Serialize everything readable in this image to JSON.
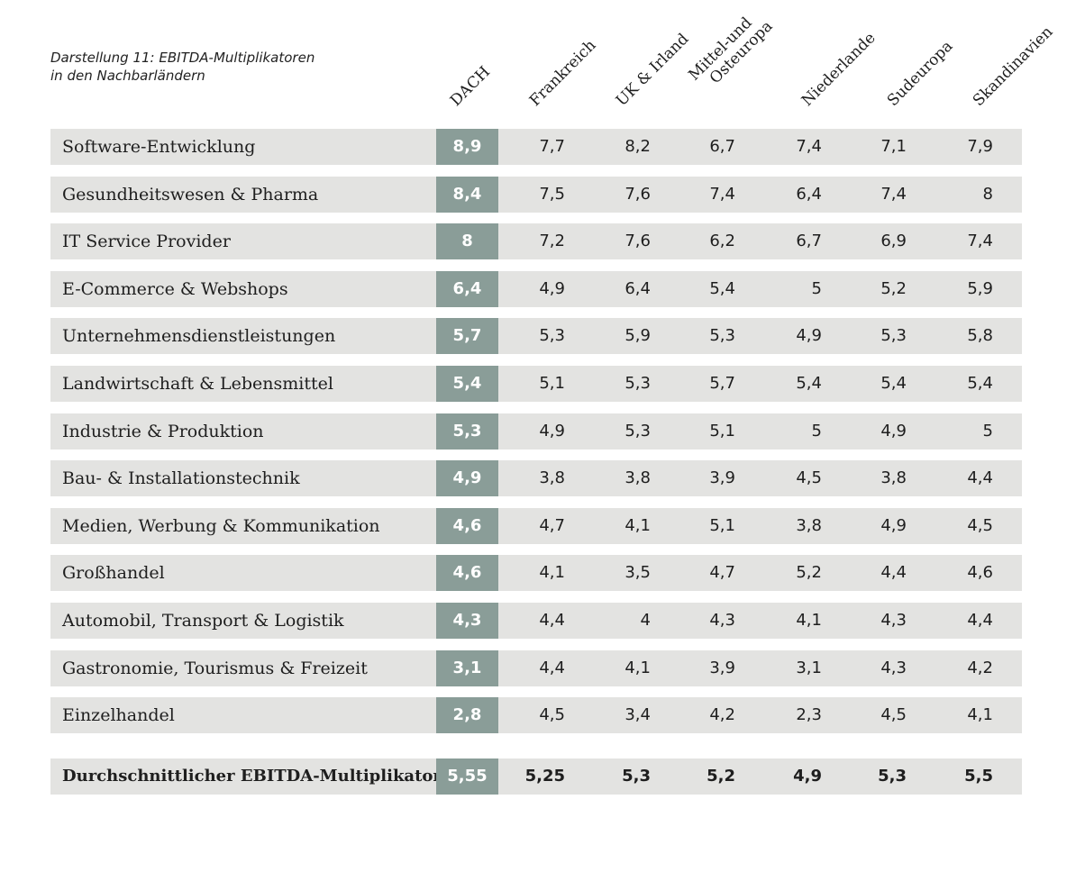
{
  "chart_data": {
    "type": "table",
    "title": "Darstellung 11: EBITDA-Multiplikatoren",
    "subtitle": "in den Nachbarländern",
    "columns": [
      {
        "label": "DACH"
      },
      {
        "label": "Frankreich"
      },
      {
        "label": "UK & Irland"
      },
      {
        "label": "Mittel-und",
        "label2": "Osteuropa"
      },
      {
        "label": "Niederlande"
      },
      {
        "label": "Sudeuropa"
      },
      {
        "label": "Skandinavien"
      }
    ],
    "rows": [
      {
        "label": "Software-Entwicklung",
        "values": [
          "8,9",
          "7,7",
          "8,2",
          "6,7",
          "7,4",
          "7,1",
          "7,9"
        ]
      },
      {
        "label": "Gesundheitswesen & Pharma",
        "values": [
          "8,4",
          "7,5",
          "7,6",
          "7,4",
          "6,4",
          "7,4",
          "8"
        ]
      },
      {
        "label": "IT Service Provider",
        "values": [
          "8",
          "7,2",
          "7,6",
          "6,2",
          "6,7",
          "6,9",
          "7,4"
        ]
      },
      {
        "label": "E-Commerce & Webshops",
        "values": [
          "6,4",
          "4,9",
          "6,4",
          "5,4",
          "5",
          "5,2",
          "5,9"
        ]
      },
      {
        "label": "Unternehmensdienstleistungen",
        "values": [
          "5,7",
          "5,3",
          "5,9",
          "5,3",
          "4,9",
          "5,3",
          "5,8"
        ]
      },
      {
        "label": "Landwirtschaft & Lebensmittel",
        "values": [
          "5,4",
          "5,1",
          "5,3",
          "5,7",
          "5,4",
          "5,4",
          "5,4"
        ]
      },
      {
        "label": "Industrie & Produktion",
        "values": [
          "5,3",
          "4,9",
          "5,3",
          "5,1",
          "5",
          "4,9",
          "5"
        ]
      },
      {
        "label": "Bau- & Installationstechnik",
        "values": [
          "4,9",
          "3,8",
          "3,8",
          "3,9",
          "4,5",
          "3,8",
          "4,4"
        ]
      },
      {
        "label": "Medien, Werbung & Kommunikation",
        "values": [
          "4,6",
          "4,7",
          "4,1",
          "5,1",
          "3,8",
          "4,9",
          "4,5"
        ]
      },
      {
        "label": "Großhandel",
        "values": [
          "4,6",
          "4,1",
          "3,5",
          "4,7",
          "5,2",
          "4,4",
          "4,6"
        ]
      },
      {
        "label": "Automobil, Transport & Logistik",
        "values": [
          "4,3",
          "4,4",
          "4",
          "4,3",
          "4,1",
          "4,3",
          "4,4"
        ]
      },
      {
        "label": "Gastronomie, Tourismus & Freizeit",
        "values": [
          "3,1",
          "4,4",
          "4,1",
          "3,9",
          "3,1",
          "4,3",
          "4,2"
        ]
      },
      {
        "label": "Einzelhandel",
        "values": [
          "2,8",
          "4,5",
          "3,4",
          "4,2",
          "2,3",
          "4,5",
          "4,1"
        ]
      }
    ],
    "total": {
      "label": "Durchschnittlicher EBITDA-Multiplikator",
      "values": [
        "5,55",
        "5,25",
        "5,3",
        "5,2",
        "4,9",
        "5,3",
        "5,5"
      ]
    }
  },
  "colors": {
    "row_background": "#e3e3e1",
    "dach_highlight": "#8a9d98",
    "text": "#1e1e1e"
  }
}
